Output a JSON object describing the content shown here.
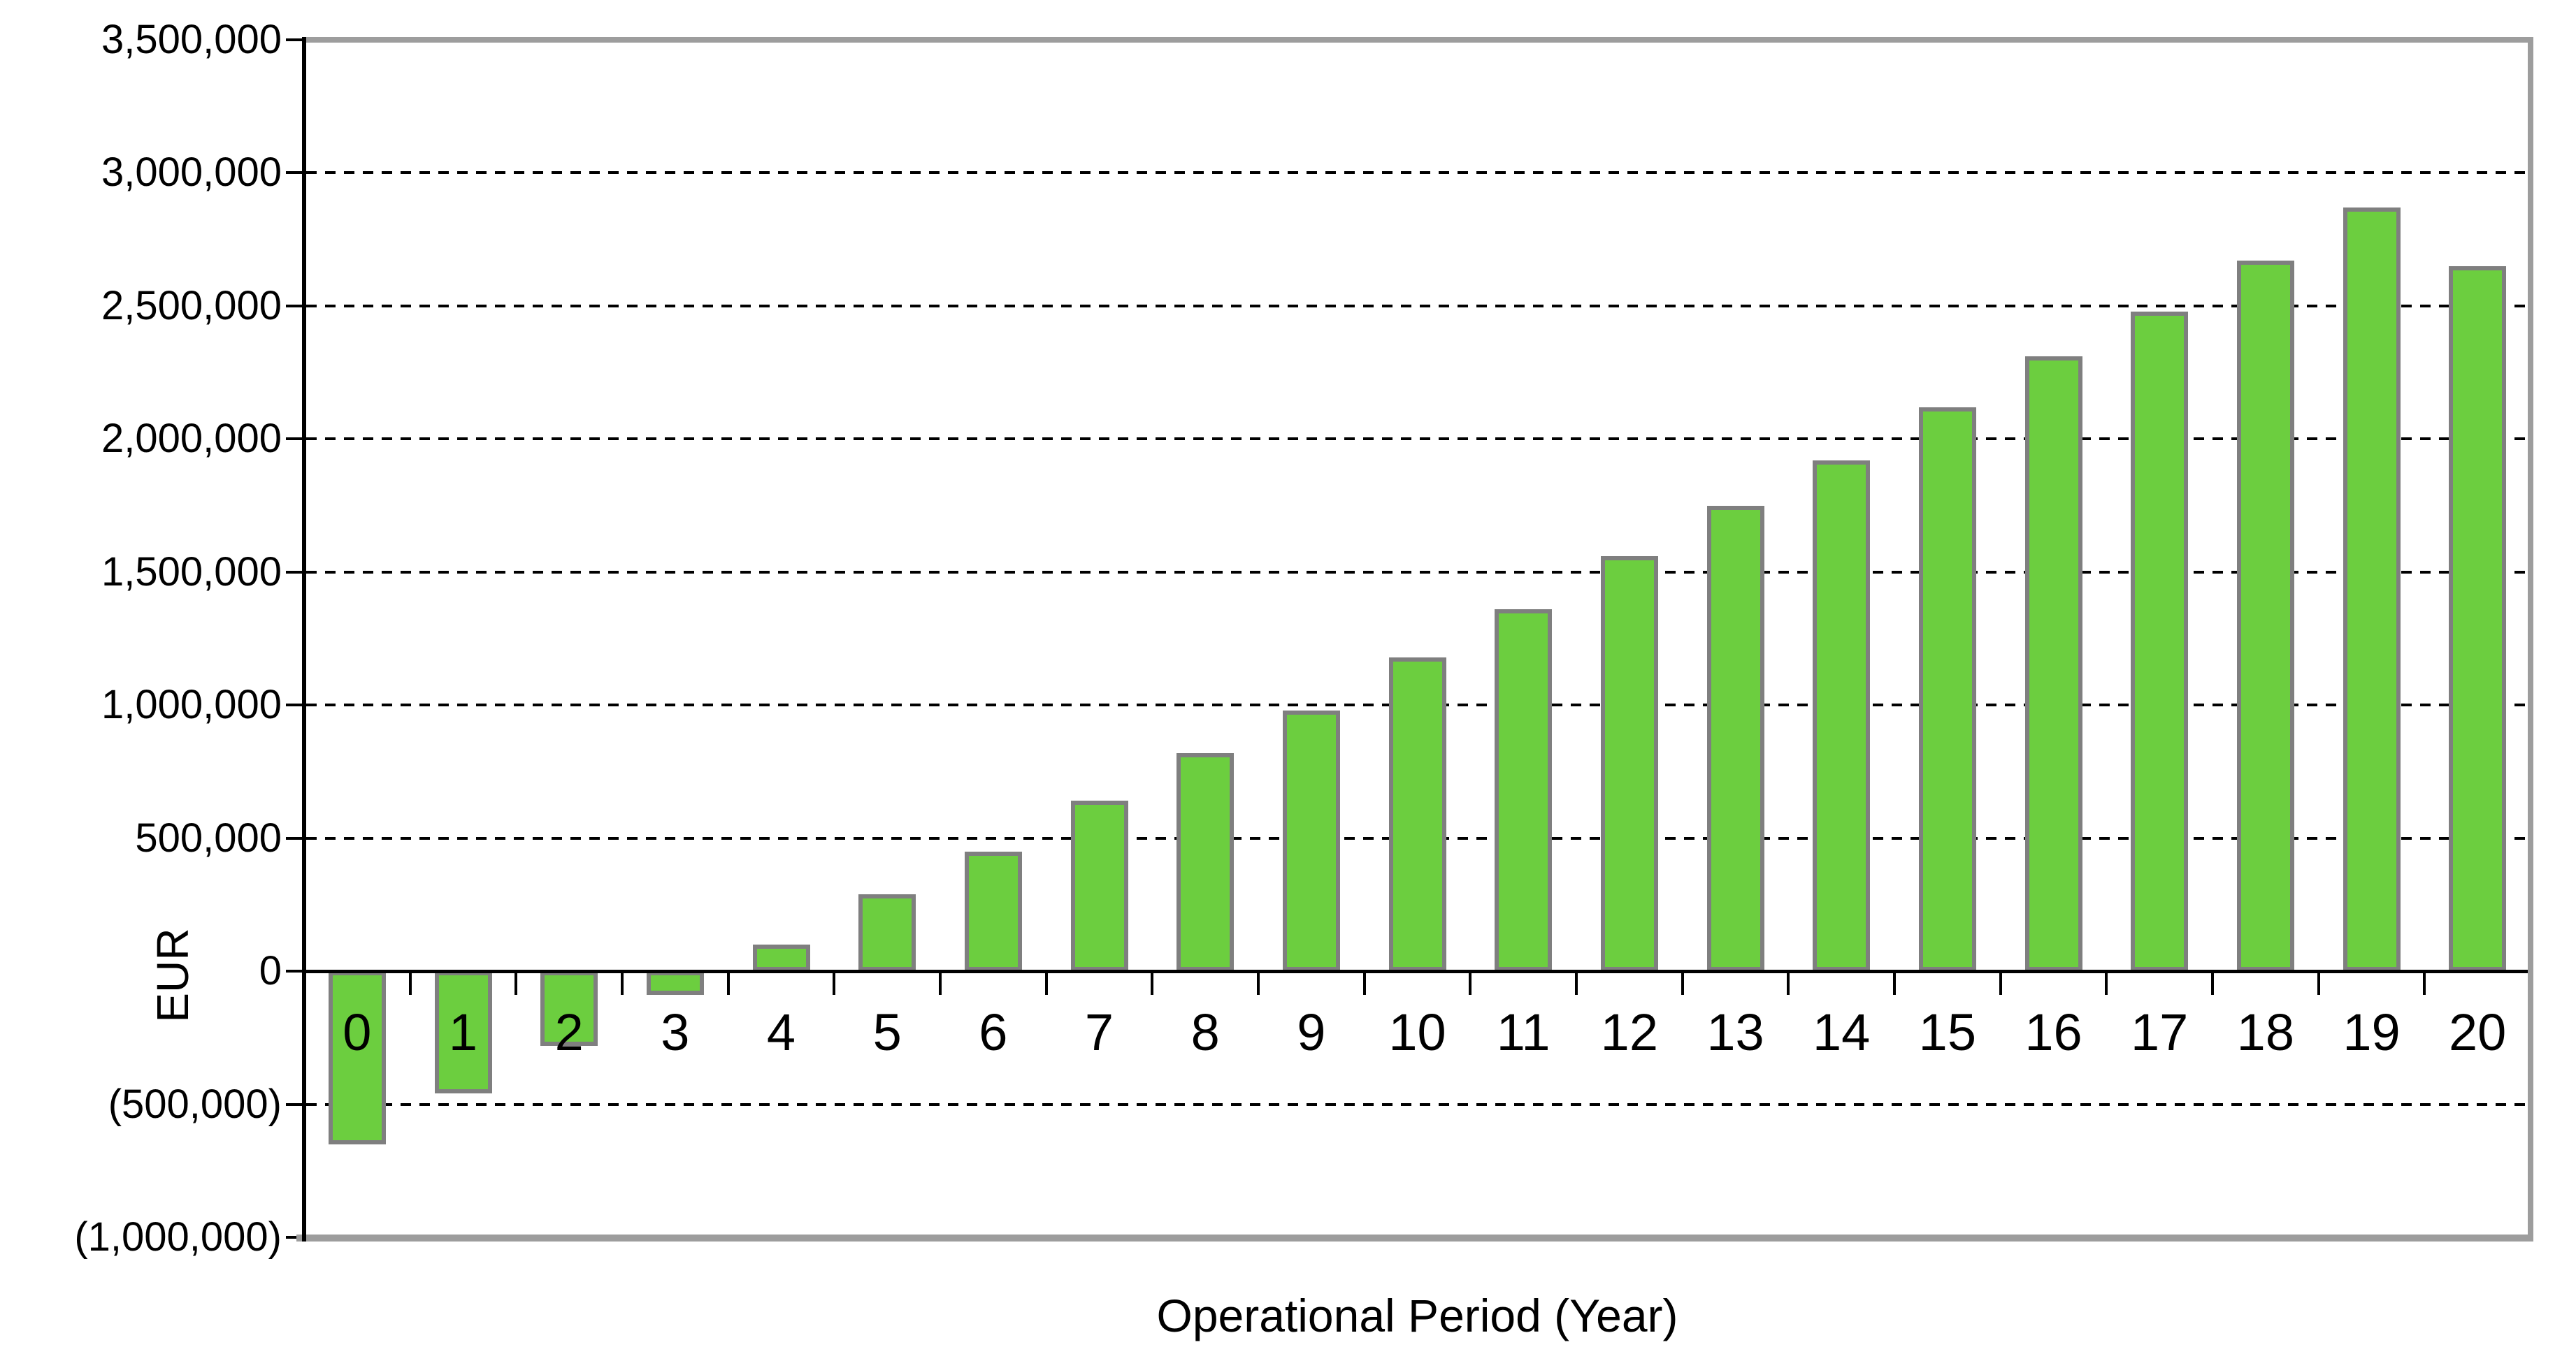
{
  "chart_data": {
    "type": "bar",
    "title": "",
    "xlabel": "Operational Period (Year)",
    "ylabel": "EUR",
    "categories": [
      "0",
      "1",
      "2",
      "3",
      "4",
      "5",
      "6",
      "7",
      "8",
      "9",
      "10",
      "11",
      "12",
      "13",
      "14",
      "15",
      "16",
      "17",
      "18",
      "19",
      "20"
    ],
    "values": [
      -650000,
      -460000,
      -280000,
      -90000,
      100000,
      290000,
      450000,
      640000,
      820000,
      980000,
      1180000,
      1360000,
      1560000,
      1750000,
      1920000,
      2120000,
      2310000,
      2480000,
      2670000,
      2870000,
      2650000
    ],
    "ylim": [
      -1000000,
      3500000
    ],
    "ytick_step": 500000,
    "yticks": [
      {
        "value": -1000000,
        "label": "(1,000,000)",
        "line": "frame"
      },
      {
        "value": -500000,
        "label": "(500,000)",
        "line": "dashed"
      },
      {
        "value": 0,
        "label": "0",
        "line": "solid"
      },
      {
        "value": 500000,
        "label": "500,000",
        "line": "dashed"
      },
      {
        "value": 1000000,
        "label": "1,000,000",
        "line": "dashed"
      },
      {
        "value": 1500000,
        "label": "1,500,000",
        "line": "dashed"
      },
      {
        "value": 2000000,
        "label": "2,000,000",
        "line": "dashed"
      },
      {
        "value": 2500000,
        "label": "2,500,000",
        "line": "dashed"
      },
      {
        "value": 3000000,
        "label": "3,000,000",
        "line": "dashed"
      },
      {
        "value": 3500000,
        "label": "3,500,000",
        "line": "frame"
      }
    ],
    "grid": "horizontal-dashed",
    "legend": "none",
    "colors": {
      "bar_fill": "#6cce3f",
      "bar_border": "#7f7f7f",
      "axis": "#000000",
      "plot_frame": "#9d9d9d",
      "text": "#000000",
      "background": "#ffffff"
    }
  }
}
